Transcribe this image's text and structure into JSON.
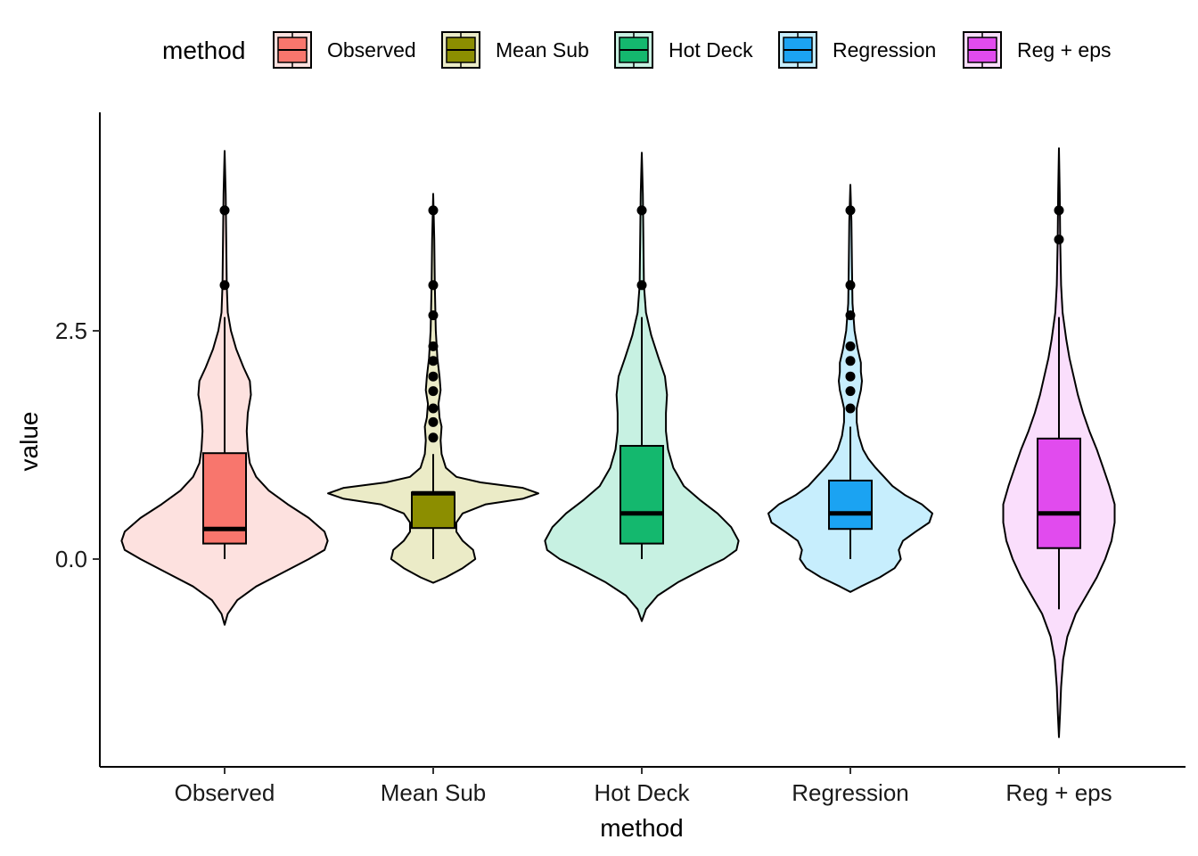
{
  "chart_data": {
    "type": "violin",
    "title": "",
    "xlabel": "method",
    "ylabel": "value",
    "ylim": [
      -0.9,
      3.8
    ],
    "yticks": [
      0.0,
      2.5
    ],
    "ytick_labels": [
      "0.0",
      "2.5"
    ],
    "categories": [
      "Observed",
      "Mean Sub",
      "Hot Deck",
      "Regression",
      "Reg + eps"
    ],
    "legend": {
      "title": "method",
      "position": "top",
      "labels": [
        "Observed",
        "Mean Sub",
        "Hot Deck",
        "Regression",
        "Reg + eps"
      ]
    },
    "colors": [
      "#F8766D",
      "#A3A500",
      "#00BF7D",
      "#00B0F6",
      "#E76BF3"
    ],
    "box_colors": [
      "#F8766D",
      "#8C8E00",
      "#14B86E",
      "#1BA3F2",
      "#E14BEE"
    ],
    "series": [
      {
        "name": "Observed",
        "box": {
          "lower": 0.16,
          "q1": 0.17,
          "median": 0.33,
          "q3": 1.16,
          "upper": 2.5
        },
        "whisker_low": 0.0,
        "whisker_high": 2.65,
        "outliers": [
          3.0,
          3.82
        ],
        "violin_min": -0.72,
        "violin_max": 4.47,
        "violin_profile": [
          [
            -0.72,
            0.0
          ],
          [
            -0.6,
            0.03
          ],
          [
            -0.45,
            0.12
          ],
          [
            -0.3,
            0.3
          ],
          [
            -0.15,
            0.55
          ],
          [
            0.0,
            0.8
          ],
          [
            0.1,
            0.95
          ],
          [
            0.2,
            0.98
          ],
          [
            0.3,
            0.95
          ],
          [
            0.45,
            0.8
          ],
          [
            0.6,
            0.6
          ],
          [
            0.75,
            0.42
          ],
          [
            0.9,
            0.3
          ],
          [
            1.05,
            0.24
          ],
          [
            1.2,
            0.22
          ],
          [
            1.4,
            0.21
          ],
          [
            1.6,
            0.22
          ],
          [
            1.8,
            0.25
          ],
          [
            1.95,
            0.24
          ],
          [
            2.1,
            0.18
          ],
          [
            2.3,
            0.11
          ],
          [
            2.5,
            0.06
          ],
          [
            2.7,
            0.03
          ],
          [
            3.0,
            0.02
          ],
          [
            3.5,
            0.015
          ],
          [
            4.0,
            0.01
          ],
          [
            4.47,
            0.0
          ]
        ]
      },
      {
        "name": "Mean Sub",
        "box": {
          "q1": 0.34,
          "median": 0.72,
          "q3": 0.73
        },
        "whisker_low": 0.0,
        "whisker_high": 1.15,
        "outliers": [
          1.33,
          1.5,
          1.65,
          1.84,
          2.0,
          2.17,
          2.33,
          2.67,
          3.0,
          3.82
        ],
        "violin_min": -0.26,
        "violin_max": 4.0,
        "violin_profile": [
          [
            -0.26,
            0.0
          ],
          [
            -0.2,
            0.12
          ],
          [
            -0.1,
            0.28
          ],
          [
            0.0,
            0.4
          ],
          [
            0.1,
            0.38
          ],
          [
            0.2,
            0.28
          ],
          [
            0.3,
            0.22
          ],
          [
            0.4,
            0.22
          ],
          [
            0.5,
            0.28
          ],
          [
            0.6,
            0.5
          ],
          [
            0.66,
            0.85
          ],
          [
            0.72,
            1.0
          ],
          [
            0.78,
            0.85
          ],
          [
            0.84,
            0.45
          ],
          [
            0.9,
            0.22
          ],
          [
            1.0,
            0.12
          ],
          [
            1.15,
            0.08
          ],
          [
            1.3,
            0.07
          ],
          [
            1.45,
            0.08
          ],
          [
            1.55,
            0.06
          ],
          [
            1.7,
            0.05
          ],
          [
            1.85,
            0.07
          ],
          [
            2.0,
            0.06
          ],
          [
            2.2,
            0.04
          ],
          [
            2.5,
            0.025
          ],
          [
            3.0,
            0.015
          ],
          [
            3.5,
            0.01
          ],
          [
            4.0,
            0.0
          ]
        ]
      },
      {
        "name": "Hot Deck",
        "box": {
          "q1": 0.17,
          "median": 0.5,
          "q3": 1.24
        },
        "whisker_low": 0.0,
        "whisker_high": 2.65,
        "outliers": [
          3.0,
          3.82
        ],
        "violin_min": -0.68,
        "violin_max": 4.45,
        "violin_profile": [
          [
            -0.68,
            0.0
          ],
          [
            -0.55,
            0.04
          ],
          [
            -0.4,
            0.15
          ],
          [
            -0.25,
            0.35
          ],
          [
            -0.1,
            0.6
          ],
          [
            0.0,
            0.78
          ],
          [
            0.1,
            0.9
          ],
          [
            0.2,
            0.92
          ],
          [
            0.35,
            0.85
          ],
          [
            0.5,
            0.72
          ],
          [
            0.65,
            0.55
          ],
          [
            0.8,
            0.4
          ],
          [
            1.0,
            0.3
          ],
          [
            1.2,
            0.25
          ],
          [
            1.4,
            0.23
          ],
          [
            1.6,
            0.23
          ],
          [
            1.8,
            0.24
          ],
          [
            2.0,
            0.22
          ],
          [
            2.2,
            0.16
          ],
          [
            2.45,
            0.09
          ],
          [
            2.7,
            0.04
          ],
          [
            3.0,
            0.02
          ],
          [
            3.5,
            0.015
          ],
          [
            4.0,
            0.01
          ],
          [
            4.45,
            0.0
          ]
        ]
      },
      {
        "name": "Regression",
        "box": {
          "q1": 0.33,
          "median": 0.5,
          "q3": 0.86
        },
        "whisker_low": 0.0,
        "whisker_high": 1.45,
        "outliers": [
          1.65,
          1.84,
          2.0,
          2.17,
          2.33,
          2.67,
          3.0,
          3.82
        ],
        "violin_min": -0.36,
        "violin_max": 4.1,
        "violin_profile": [
          [
            -0.36,
            0.0
          ],
          [
            -0.3,
            0.1
          ],
          [
            -0.2,
            0.28
          ],
          [
            -0.1,
            0.42
          ],
          [
            0.0,
            0.48
          ],
          [
            0.1,
            0.46
          ],
          [
            0.2,
            0.5
          ],
          [
            0.3,
            0.62
          ],
          [
            0.4,
            0.75
          ],
          [
            0.5,
            0.78
          ],
          [
            0.6,
            0.68
          ],
          [
            0.7,
            0.52
          ],
          [
            0.8,
            0.4
          ],
          [
            0.9,
            0.32
          ],
          [
            1.0,
            0.24
          ],
          [
            1.1,
            0.17
          ],
          [
            1.2,
            0.12
          ],
          [
            1.35,
            0.08
          ],
          [
            1.5,
            0.06
          ],
          [
            1.65,
            0.06
          ],
          [
            1.75,
            0.08
          ],
          [
            1.85,
            0.1
          ],
          [
            1.95,
            0.11
          ],
          [
            2.05,
            0.1
          ],
          [
            2.15,
            0.1
          ],
          [
            2.3,
            0.07
          ],
          [
            2.5,
            0.04
          ],
          [
            2.8,
            0.02
          ],
          [
            3.2,
            0.015
          ],
          [
            3.7,
            0.01
          ],
          [
            4.1,
            0.0
          ]
        ]
      },
      {
        "name": "Reg + eps",
        "box": {
          "q1": 0.12,
          "median": 0.5,
          "q3": 1.32
        },
        "whisker_low": -0.55,
        "whisker_high": 2.65,
        "outliers": [
          3.5,
          3.82
        ],
        "violin_min": -1.95,
        "violin_max": 4.5,
        "violin_profile": [
          [
            -1.95,
            0.0
          ],
          [
            -1.7,
            0.01
          ],
          [
            -1.4,
            0.02
          ],
          [
            -1.1,
            0.04
          ],
          [
            -0.85,
            0.08
          ],
          [
            -0.6,
            0.16
          ],
          [
            -0.4,
            0.26
          ],
          [
            -0.2,
            0.36
          ],
          [
            0.0,
            0.44
          ],
          [
            0.2,
            0.5
          ],
          [
            0.4,
            0.53
          ],
          [
            0.6,
            0.53
          ],
          [
            0.8,
            0.48
          ],
          [
            1.0,
            0.42
          ],
          [
            1.2,
            0.36
          ],
          [
            1.4,
            0.29
          ],
          [
            1.6,
            0.23
          ],
          [
            1.8,
            0.18
          ],
          [
            2.0,
            0.14
          ],
          [
            2.2,
            0.1
          ],
          [
            2.4,
            0.07
          ],
          [
            2.7,
            0.035
          ],
          [
            3.0,
            0.02
          ],
          [
            3.5,
            0.012
          ],
          [
            4.0,
            0.008
          ],
          [
            4.5,
            0.0
          ]
        ]
      }
    ]
  }
}
